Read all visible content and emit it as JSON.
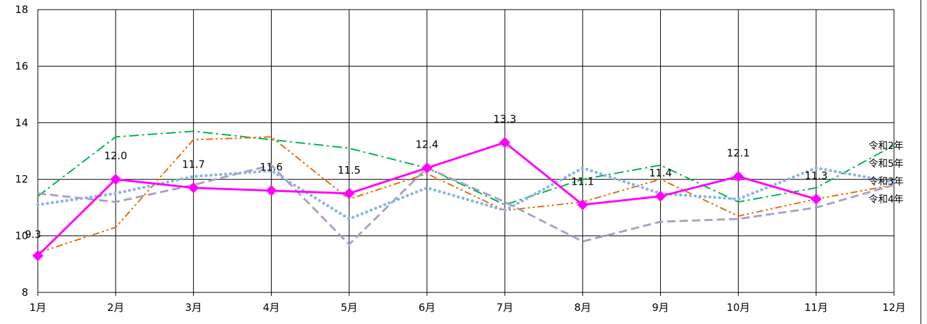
{
  "chart_data": {
    "type": "line",
    "title": "",
    "xlabel": "",
    "ylabel": "",
    "categories": [
      "1月",
      "2月",
      "3月",
      "4月",
      "5月",
      "6月",
      "7月",
      "8月",
      "9月",
      "10月",
      "11月",
      "12月"
    ],
    "ylim": [
      8,
      18
    ],
    "yticks": [
      "8",
      "10",
      "12",
      "14",
      "16",
      "18"
    ],
    "grid": true,
    "legend_placement": "right",
    "series": [
      {
        "name": "令和2年",
        "color": "#00b050",
        "style": "dash-dot",
        "values": [
          11.4,
          13.5,
          13.7,
          13.4,
          13.1,
          12.4,
          11.1,
          12.0,
          12.5,
          11.2,
          11.7,
          13.2
        ]
      },
      {
        "name": "令和3年",
        "color": "#e46c0a",
        "style": "dash-dot-dot",
        "values": [
          9.4,
          10.3,
          13.4,
          13.5,
          11.3,
          12.2,
          10.9,
          11.2,
          12.0,
          10.7,
          11.3,
          11.8
        ]
      },
      {
        "name": "令和4年",
        "color": "#a9a0c8",
        "style": "dash",
        "values": [
          11.5,
          11.2,
          11.8,
          12.5,
          9.7,
          12.4,
          11.2,
          9.8,
          10.5,
          10.6,
          11.0,
          11.8
        ]
      },
      {
        "name": "令和5年",
        "color": "#8eb4e3",
        "style": "dot",
        "values": [
          11.1,
          11.5,
          12.1,
          12.3,
          10.6,
          11.7,
          10.9,
          12.4,
          11.5,
          11.3,
          12.4,
          11.9
        ]
      },
      {
        "name": "",
        "color": "#ff00ff",
        "style": "solid-marker",
        "values": [
          9.3,
          12.0,
          11.7,
          11.6,
          11.5,
          12.4,
          13.3,
          11.1,
          11.4,
          12.1,
          11.3,
          null
        ],
        "labels": [
          "9.3",
          "12.0",
          "11.7",
          "11.6",
          "11.5",
          "12.4",
          "13.3",
          "11.1",
          "11.4",
          "12.1",
          "11.3",
          ""
        ]
      }
    ],
    "legend_order": [
      "令和2年",
      "令和5年",
      "令和3年",
      "令和4年"
    ]
  }
}
